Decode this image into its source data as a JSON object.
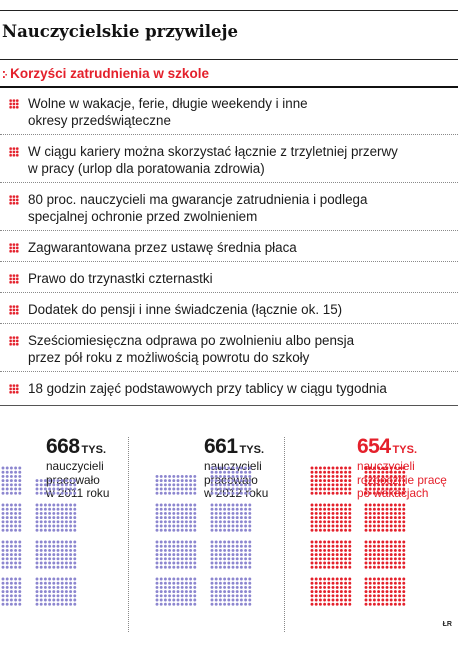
{
  "title": "Nauczycielskie przywileje",
  "subtitle": "Korzyści zatrudnienia w szkole",
  "benefits": [
    {
      "lines": [
        "Wolne w wakacje, ferie, długie weekendy i inne",
        "okresy przedświąteczne"
      ]
    },
    {
      "lines": [
        "W ciągu kariery można skorzystać łącznie z trzyletniej przerwy",
        "w pracy (urlop dla poratowania zdrowia)"
      ]
    },
    {
      "lines": [
        "80 proc. nauczycieli ma gwarancje zatrudnienia i podlega",
        "specjalnej ochronie przed zwolnieniem"
      ]
    },
    {
      "lines": [
        "Zagwarantowana przez ustawę średnia płaca"
      ]
    },
    {
      "lines": [
        "Prawo do trzynastki czternastki"
      ]
    },
    {
      "lines": [
        "Dodatek do pensji i inne świadczenia (łącznie ok. 15)"
      ]
    },
    {
      "lines": [
        "Sześciomiesięczna odprawa po zwolnieniu albo pensja",
        "przez pół roku z możliwością powrotu do szkoły"
      ]
    },
    {
      "lines": [
        "18 godzin zajęć podstawowych przy tablicy w ciągu tygodnia"
      ]
    }
  ],
  "stats": [
    {
      "number": "668",
      "unit": "TYS.",
      "desc": [
        "nauczycieli",
        "pracowało",
        "w 2011 roku"
      ],
      "color": "#8c86cf",
      "text_color": "#1a1a1a"
    },
    {
      "number": "661",
      "unit": "TYS.",
      "desc": [
        "nauczycieli",
        "pracowało",
        "w 2012 roku"
      ],
      "color": "#8c86cf",
      "text_color": "#1a1a1a"
    },
    {
      "number": "654",
      "unit": "TYS.",
      "desc": [
        "nauczycieli",
        "rozpocznie pracę",
        "po wakacjach"
      ],
      "color": "#e4202b",
      "text_color": "#e4202b"
    }
  ],
  "credit": "ŁR",
  "colors": {
    "accent": "#e4202b",
    "purple": "#8c86cf"
  }
}
